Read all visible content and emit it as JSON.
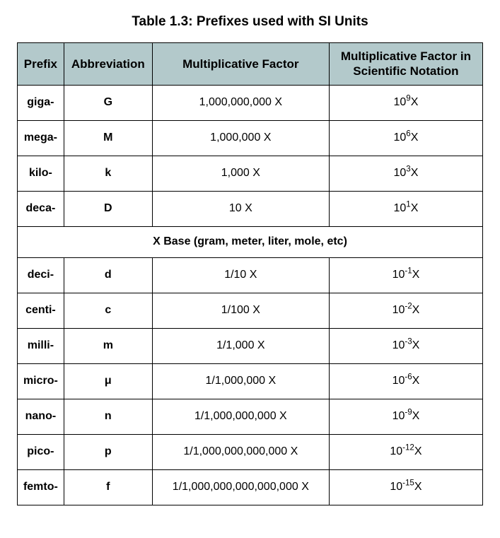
{
  "title": "Table 1.3: Prefixes used with SI Units",
  "headers": {
    "prefix": "Prefix",
    "abbrev": "Abbreviation",
    "factor": "Multiplicative Factor",
    "sci": "Multiplicative Factor in Scientific Notation"
  },
  "spanRow": "X Base (gram, meter, liter, mole, etc)",
  "column_widths_pct": [
    10,
    19,
    38,
    33
  ],
  "colors": {
    "header_bg": "#b3c9cb",
    "cell_bg": "#ffffff",
    "border": "#000000",
    "text": "#000000"
  },
  "fonts": {
    "title_size_pt": 19,
    "header_size_pt": 17,
    "cell_size_pt": 16,
    "family": "Myriad Pro / sans-serif"
  },
  "topRows": [
    {
      "prefix": "giga-",
      "abbrev": "G",
      "factor": "1,000,000,000 X",
      "exp": "9"
    },
    {
      "prefix": "mega-",
      "abbrev": "M",
      "factor": "1,000,000 X",
      "exp": "6"
    },
    {
      "prefix": "kilo-",
      "abbrev": "k",
      "factor": "1,000 X",
      "exp": "3"
    },
    {
      "prefix": "deca-",
      "abbrev": "D",
      "factor": "10 X",
      "exp": "1"
    }
  ],
  "bottomRows": [
    {
      "prefix": "deci-",
      "abbrev": "d",
      "factor": "1/10 X",
      "exp": "-1"
    },
    {
      "prefix": "centi-",
      "abbrev": "c",
      "factor": "1/100 X",
      "exp": "-2"
    },
    {
      "prefix": "milli-",
      "abbrev": "m",
      "factor": "1/1,000 X",
      "exp": "-3"
    },
    {
      "prefix": "micro-",
      "abbrev": "μ",
      "factor": "1/1,000,000 X",
      "exp": "-6"
    },
    {
      "prefix": "nano-",
      "abbrev": "n",
      "factor": "1/1,000,000,000 X",
      "exp": "-9"
    },
    {
      "prefix": "pico-",
      "abbrev": "p",
      "factor": "1/1,000,000,000,000 X",
      "exp": "-12"
    },
    {
      "prefix": "femto-",
      "abbrev": "f",
      "factor": "1/1,000,000,000,000,000 X",
      "exp": "-15"
    }
  ],
  "sciBase": "10",
  "sciSuffix": "X"
}
